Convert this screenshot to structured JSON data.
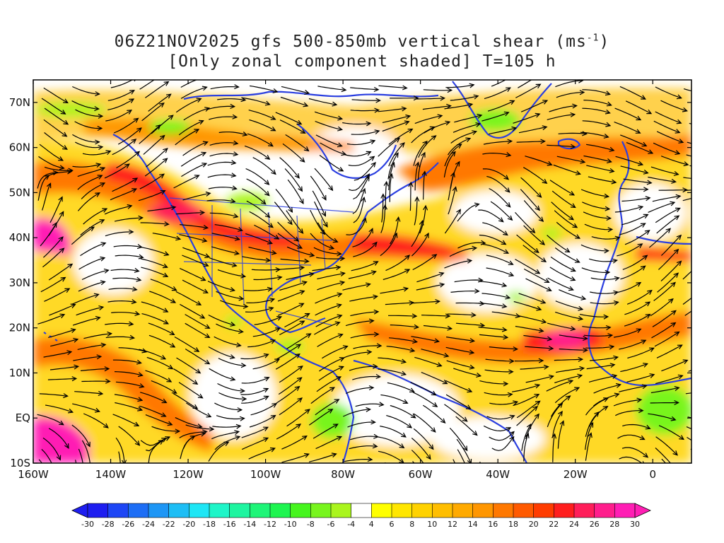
{
  "title": {
    "line1_prefix": "06Z21NOV2025 gfs 500-850mb vertical shear (ms",
    "line1_sup": "-1",
    "line1_suffix": ")",
    "line2": "[Only zonal component shaded] T=105 h"
  },
  "map": {
    "lon_range": [
      -160,
      10
    ],
    "lat_range": [
      -10,
      75
    ],
    "lat_ticks": [
      {
        "value": 70,
        "label": "70N"
      },
      {
        "value": 60,
        "label": "60N"
      },
      {
        "value": 50,
        "label": "50N"
      },
      {
        "value": 40,
        "label": "40N"
      },
      {
        "value": 30,
        "label": "30N"
      },
      {
        "value": 20,
        "label": "20N"
      },
      {
        "value": 10,
        "label": "10N"
      },
      {
        "value": 0,
        "label": "EQ"
      },
      {
        "value": -10,
        "label": "10S"
      }
    ],
    "lon_ticks": [
      {
        "value": -160,
        "label": "160W"
      },
      {
        "value": -140,
        "label": "140W"
      },
      {
        "value": -120,
        "label": "120W"
      },
      {
        "value": -100,
        "label": "100W"
      },
      {
        "value": -80,
        "label": "80W"
      },
      {
        "value": -60,
        "label": "60W"
      },
      {
        "value": -40,
        "label": "40W"
      },
      {
        "value": -20,
        "label": "20W"
      },
      {
        "value": 0,
        "label": "0"
      }
    ],
    "coastline_color": "#2b3fe0",
    "streamline_color": "#000000"
  },
  "colorbar": {
    "levels": [
      -30,
      -28,
      -26,
      -24,
      -22,
      -20,
      -18,
      -16,
      -14,
      -12,
      -10,
      -8,
      -6,
      -4,
      4,
      6,
      8,
      10,
      12,
      14,
      16,
      18,
      20,
      22,
      24,
      26,
      28,
      30
    ],
    "labels": [
      "-30",
      "-28",
      "-26",
      "-24",
      "-22",
      "-20",
      "-18",
      "-16",
      "-14",
      "-12",
      "-10",
      "-8",
      "-6",
      "-4",
      "4",
      "6",
      "8",
      "10",
      "12",
      "14",
      "16",
      "18",
      "20",
      "22",
      "24",
      "26",
      "28",
      "30"
    ],
    "colors": [
      "#1e1ef0",
      "#1e46f5",
      "#1e6ef5",
      "#1e96f5",
      "#1ebef5",
      "#1ee6f5",
      "#1ef5c8",
      "#1ef5a0",
      "#1ef578",
      "#1ef550",
      "#46f51e",
      "#78f51e",
      "#aaf51e",
      "#ffffff",
      "#ffff00",
      "#ffe600",
      "#ffd200",
      "#ffbe00",
      "#ffaa00",
      "#ff9600",
      "#ff7800",
      "#ff5a00",
      "#ff3c00",
      "#ff1e1e",
      "#ff1e5a",
      "#ff1e8c",
      "#ff1eb4"
    ],
    "end_low_color": "#1e1ef0",
    "end_high_color": "#ff1eb4"
  }
}
